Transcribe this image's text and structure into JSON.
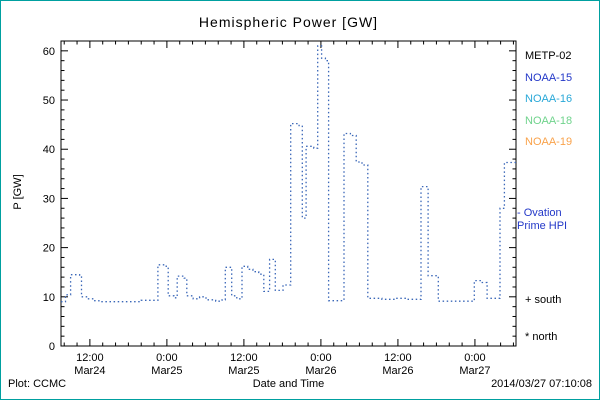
{
  "chart_data": {
    "type": "line",
    "style": "dotted-step",
    "title": "Hemispheric Power [GW]",
    "xlabel": "Date and Time",
    "ylabel": "P [GW]",
    "ylim": [
      0,
      62
    ],
    "yticks": [
      0,
      10,
      20,
      30,
      40,
      50,
      60
    ],
    "xlim_hours": [
      7.5,
      78.4
    ],
    "xticks": [
      {
        "hours": 12,
        "time": "12:00",
        "date": "Mar24"
      },
      {
        "hours": 24,
        "time": "0:00",
        "date": "Mar25"
      },
      {
        "hours": 36,
        "time": "12:00",
        "date": "Mar25"
      },
      {
        "hours": 48,
        "time": "0:00",
        "date": "Mar26"
      },
      {
        "hours": 60,
        "time": "12:00",
        "date": "Mar26"
      },
      {
        "hours": 72,
        "time": "0:00",
        "date": "Mar27"
      }
    ],
    "line_color": "#3a67b8",
    "grid": false,
    "series": [
      {
        "name": "Ovation Prime HPI",
        "x_unit": "hours since 2014-03-24 00:00",
        "step_points": [
          [
            7.5,
            9.0
          ],
          [
            8.2,
            10.4
          ],
          [
            9.0,
            14.5
          ],
          [
            10.4,
            14.2
          ],
          [
            10.7,
            10.0
          ],
          [
            11.6,
            9.6
          ],
          [
            12.6,
            9.2
          ],
          [
            13.4,
            9.0
          ],
          [
            20.0,
            9.3
          ],
          [
            22.6,
            16.5
          ],
          [
            23.9,
            16.2
          ],
          [
            24.2,
            10.2
          ],
          [
            25.1,
            9.8
          ],
          [
            25.6,
            14.2
          ],
          [
            26.7,
            13.8
          ],
          [
            27.1,
            10.2
          ],
          [
            28.1,
            9.6
          ],
          [
            29.1,
            10.0
          ],
          [
            30.1,
            9.4
          ],
          [
            31.6,
            9.1
          ],
          [
            32.6,
            9.4
          ],
          [
            33.1,
            16.0
          ],
          [
            34.1,
            10.2
          ],
          [
            34.9,
            9.6
          ],
          [
            35.7,
            16.2
          ],
          [
            36.6,
            15.6
          ],
          [
            37.4,
            15.1
          ],
          [
            38.3,
            14.6
          ],
          [
            39.1,
            11.1
          ],
          [
            40.0,
            17.6
          ],
          [
            40.9,
            11.3
          ],
          [
            42.1,
            12.4
          ],
          [
            43.3,
            45.2
          ],
          [
            44.6,
            44.8
          ],
          [
            45.1,
            26.0
          ],
          [
            45.7,
            40.6
          ],
          [
            46.9,
            40.2
          ],
          [
            47.5,
            61.0
          ],
          [
            48.1,
            58.5
          ],
          [
            48.7,
            58.0
          ],
          [
            49.2,
            9.2
          ],
          [
            51.6,
            43.2
          ],
          [
            52.6,
            42.8
          ],
          [
            53.5,
            37.4
          ],
          [
            54.4,
            36.8
          ],
          [
            55.3,
            9.7
          ],
          [
            57.5,
            9.5
          ],
          [
            59.5,
            9.7
          ],
          [
            61.6,
            9.5
          ],
          [
            63.6,
            32.4
          ],
          [
            64.7,
            14.3
          ],
          [
            66.3,
            9.1
          ],
          [
            71.9,
            13.3
          ],
          [
            73.0,
            12.9
          ],
          [
            73.9,
            9.7
          ],
          [
            75.9,
            28.0
          ],
          [
            76.6,
            37.3
          ]
        ]
      }
    ]
  },
  "legend": {
    "items": [
      {
        "label": "METP-02",
        "color": "#000000"
      },
      {
        "label": "NOAA-15",
        "color": "#2338c8"
      },
      {
        "label": "NOAA-16",
        "color": "#29a8d8"
      },
      {
        "label": "NOAA-18",
        "color": "#6fd38c"
      },
      {
        "label": "NOAA-19",
        "color": "#f9a24a"
      }
    ]
  },
  "annotations": {
    "ovation_line1": "- Ovation",
    "ovation_line2": "Prime HPI",
    "south": "+ south",
    "north": "* north"
  },
  "footer": {
    "plot_credit": "Plot: CCMC",
    "timestamp": "2014/03/27 07:10:08"
  }
}
